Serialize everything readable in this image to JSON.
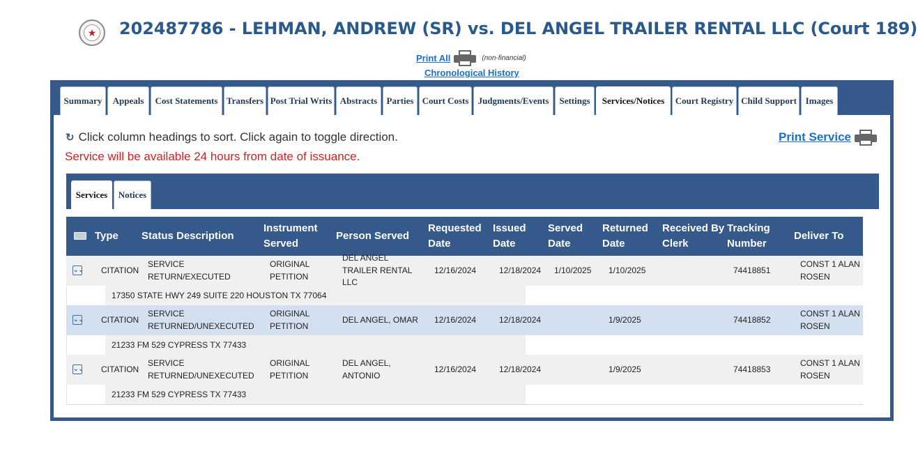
{
  "header": {
    "case_title": "202487786 - LEHMAN, ANDREW (SR) vs. DEL ANGEL TRAILER RENTAL LLC (Court 189)",
    "print_all_label": "Print All",
    "print_all_note": "(non-financial)",
    "chronological_history_label": "Chronological History"
  },
  "tabs": [
    {
      "label": "Summary"
    },
    {
      "label": "Appeals"
    },
    {
      "label": "Cost Statements"
    },
    {
      "label": "Transfers"
    },
    {
      "label": "Post Trial Writs"
    },
    {
      "label": "Abstracts"
    },
    {
      "label": "Parties"
    },
    {
      "label": "Court Costs"
    },
    {
      "label": "Judgments/Events"
    },
    {
      "label": "Settings"
    },
    {
      "label": "Services/Notices"
    },
    {
      "label": "Court Registry"
    },
    {
      "label": "Child Support"
    },
    {
      "label": "Images"
    }
  ],
  "active_tab": "Services/Notices",
  "content": {
    "sort_hint": "Click column headings to sort. Click again to toggle direction.",
    "availability_note": "Service will be available 24 hours from date of issuance.",
    "print_service_label": "Print Service"
  },
  "subtabs": [
    {
      "label": "Services"
    },
    {
      "label": "Notices"
    }
  ],
  "active_subtab": "Services",
  "table": {
    "columns": {
      "type": "Type",
      "status": "Status Description",
      "instrument": "Instrument Served",
      "person": "Person Served",
      "requested": "Requested Date",
      "issued": "Issued Date",
      "served": "Served Date",
      "returned": "Returned Date",
      "received": "Received By Clerk",
      "tracking": "Tracking Number",
      "deliver": "Deliver To"
    },
    "rows": [
      {
        "type": "CITATION",
        "status": "SERVICE RETURN/EXECUTED",
        "instrument": "ORIGINAL PETITION",
        "person": "DEL ANGEL TRAILER RENTAL LLC",
        "requested": "12/16/2024",
        "issued": "12/18/2024",
        "served": "1/10/2025",
        "returned": "1/10/2025",
        "received": "",
        "tracking": "74418851",
        "deliver": "CONST 1 ALAN ROSEN",
        "address": "17350 STATE HWY 249 SUITE 220 HOUSTON TX 77064"
      },
      {
        "type": "CITATION",
        "status": "SERVICE RETURNED/UNEXECUTED",
        "instrument": "ORIGINAL PETITION",
        "person": "DEL ANGEL, OMAR",
        "requested": "12/16/2024",
        "issued": "12/18/2024",
        "served": "",
        "returned": "1/9/2025",
        "received": "",
        "tracking": "74418852",
        "deliver": "CONST 1 ALAN ROSEN",
        "address": "21233 FM 529 CYPRESS TX 77433"
      },
      {
        "type": "CITATION",
        "status": "SERVICE RETURNED/UNEXECUTED",
        "instrument": "ORIGINAL PETITION",
        "person": "DEL ANGEL, ANTONIO",
        "requested": "12/16/2024",
        "issued": "12/18/2024",
        "served": "",
        "returned": "1/9/2025",
        "received": "",
        "tracking": "74418853",
        "deliver": "CONST 1 ALAN ROSEN",
        "address": "21233 FM 529 CYPRESS TX 77433"
      }
    ]
  },
  "icons": {
    "seal": "county-seal-icon",
    "printer": "printer-icon",
    "refresh": "refresh-icon",
    "mail": "mail-icon",
    "expand": "expand-chevron-icon"
  },
  "colors": {
    "title": "#2a5a8c",
    "frame": "#34598a",
    "link": "#1a6fd0",
    "warning": "#d42020",
    "selected_row": "#d3e0ef"
  }
}
